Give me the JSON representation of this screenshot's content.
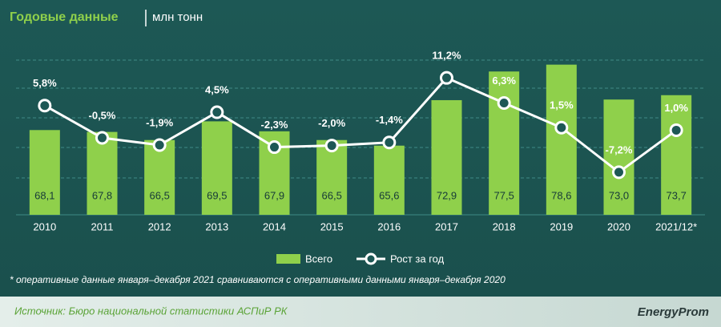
{
  "chart_data": {
    "type": "bar",
    "title": "Годовые данные",
    "subtitle": "млн тонн",
    "categories": [
      "2010",
      "2011",
      "2012",
      "2013",
      "2014",
      "2015",
      "2016",
      "2017",
      "2018",
      "2019",
      "2020",
      "2021/12*"
    ],
    "series": [
      {
        "name": "Всего",
        "type": "bar",
        "color": "#8fd04b",
        "axis": "y",
        "values": [
          68.1,
          67.8,
          66.5,
          69.5,
          67.9,
          66.5,
          65.6,
          72.9,
          77.5,
          78.6,
          73.0,
          73.7
        ],
        "value_labels": [
          "68,1",
          "67,8",
          "66,5",
          "69,5",
          "67,9",
          "66,5",
          "65,6",
          "72,9",
          "77,5",
          "78,6",
          "73,0",
          "73,7"
        ]
      },
      {
        "name": "Рост за год",
        "type": "line",
        "color": "#ffffff",
        "axis": "y2",
        "values": [
          5.8,
          -0.5,
          -1.9,
          4.5,
          -2.3,
          -2.0,
          -1.4,
          11.2,
          6.3,
          1.5,
          -7.2,
          1.0
        ],
        "value_labels": [
          "5,8%",
          "-0,5%",
          "-1,9%",
          "4,5%",
          "-2,3%",
          "-2,0%",
          "-1,4%",
          "11,2%",
          "6,3%",
          "1,5%",
          "-7,2%",
          "1,0%"
        ]
      }
    ],
    "ylim": [
      54.5,
      81
    ],
    "y2lim": [
      -15.5,
      16.7
    ],
    "footnote": "* оперативные данные января–декабря 2021 сравниваются с оперативными данными января–декабря 2020",
    "source": "Источник: Бюро национальной статистики АСПиР РК",
    "brand": "EnergyProm"
  }
}
